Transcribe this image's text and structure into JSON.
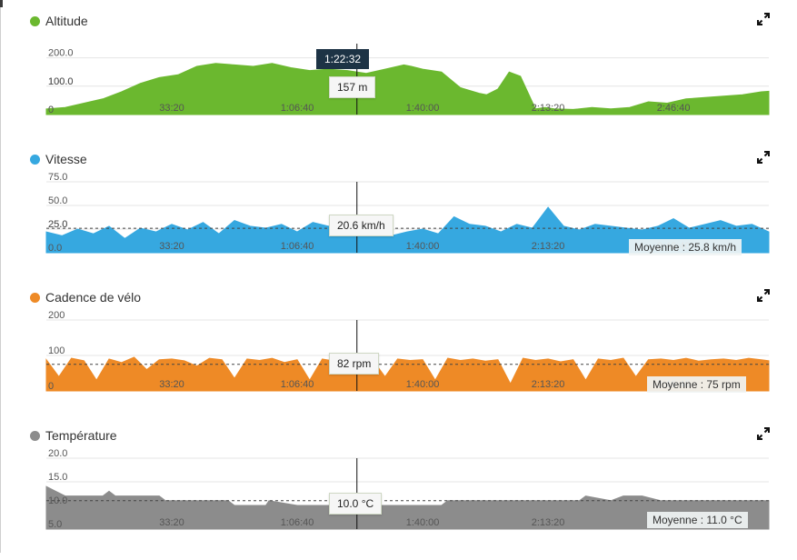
{
  "cursor": {
    "time_label": "1:22:32",
    "time_seconds": 4952
  },
  "x_axis": {
    "max_seconds": 11520,
    "ticks": [
      {
        "label": "33:20",
        "value": 2000
      },
      {
        "label": "1:06:40",
        "value": 4000
      },
      {
        "label": "1:40:00",
        "value": 6000
      },
      {
        "label": "2:13:20",
        "value": 8000
      },
      {
        "label": "2:46:40",
        "value": 10000
      }
    ]
  },
  "chart_data": [
    {
      "type": "area",
      "title": "Altitude",
      "color": "#6bb82f",
      "ylim": [
        0,
        250
      ],
      "yticks": [
        {
          "label": "200.0",
          "value": 200
        },
        {
          "label": "100.0",
          "value": 100
        },
        {
          "label": "0",
          "value": 0
        }
      ],
      "x": [
        0,
        300,
        600,
        900,
        1200,
        1500,
        1800,
        2100,
        2400,
        2700,
        3000,
        3300,
        3600,
        3900,
        4200,
        4500,
        4800,
        5100,
        5400,
        5700,
        5820,
        6000,
        6300,
        6600,
        6900,
        7020,
        7200,
        7380,
        7560,
        7800,
        7950,
        8100,
        8400,
        8700,
        9000,
        9300,
        9600,
        9900,
        10200,
        10500,
        10800,
        11100,
        11400,
        11520
      ],
      "values": [
        20,
        25,
        40,
        55,
        80,
        110,
        130,
        140,
        170,
        180,
        175,
        170,
        180,
        165,
        155,
        160,
        155,
        145,
        160,
        175,
        170,
        160,
        150,
        95,
        75,
        70,
        90,
        150,
        135,
        20,
        25,
        20,
        18,
        25,
        20,
        25,
        45,
        40,
        55,
        60,
        65,
        70,
        80,
        82
      ],
      "tooltip": "157 m"
    },
    {
      "type": "area",
      "title": "Vitesse",
      "color": "#36a8e0",
      "ylim": [
        0,
        75
      ],
      "yticks": [
        {
          "label": "75.0",
          "value": 75
        },
        {
          "label": "50.0",
          "value": 50
        },
        {
          "label": "25.0",
          "value": 25
        },
        {
          "label": "0.0",
          "value": 0
        }
      ],
      "average": 25.8,
      "average_label": "Moyenne : 25.8 km/h",
      "tooltip": "20.6 km/h",
      "x": [
        0,
        250,
        500,
        750,
        1000,
        1250,
        1500,
        1750,
        2000,
        2250,
        2500,
        2750,
        3000,
        3250,
        3500,
        3750,
        4000,
        4250,
        4500,
        4750,
        5000,
        5250,
        5500,
        5750,
        6000,
        6250,
        6500,
        6750,
        7000,
        7250,
        7500,
        7750,
        8000,
        8250,
        8500,
        8750,
        9000,
        9250,
        9500,
        9750,
        10000,
        10250,
        10500,
        10750,
        11000,
        11250,
        11520
      ],
      "values": [
        22,
        18,
        25,
        20,
        28,
        15,
        26,
        22,
        30,
        24,
        32,
        20,
        34,
        28,
        26,
        30,
        22,
        32,
        28,
        36,
        21,
        30,
        18,
        22,
        25,
        20,
        38,
        30,
        28,
        22,
        30,
        26,
        48,
        28,
        24,
        30,
        28,
        26,
        24,
        28,
        36,
        26,
        30,
        34,
        28,
        30,
        22
      ]
    },
    {
      "type": "area",
      "title": "Cadence de vélo",
      "color": "#ee8a26",
      "ylim": [
        0,
        200
      ],
      "yticks": [
        {
          "label": "200",
          "value": 200
        },
        {
          "label": "100",
          "value": 100
        },
        {
          "label": "0",
          "value": 0
        }
      ],
      "average": 75,
      "average_label": "Moyenne : 75 rpm",
      "tooltip": "82 rpm",
      "x": [
        0,
        200,
        400,
        600,
        800,
        1000,
        1200,
        1400,
        1600,
        1800,
        2000,
        2200,
        2400,
        2600,
        2800,
        3000,
        3200,
        3400,
        3600,
        3800,
        4000,
        4200,
        4400,
        4600,
        4800,
        5000,
        5200,
        5400,
        5600,
        5800,
        6000,
        6200,
        6400,
        6600,
        6800,
        7000,
        7200,
        7400,
        7600,
        7800,
        8000,
        8200,
        8400,
        8600,
        8800,
        9000,
        9200,
        9400,
        9600,
        9800,
        10000,
        10200,
        10400,
        10600,
        10800,
        11000,
        11200,
        11400,
        11520
      ],
      "values": [
        88,
        40,
        92,
        85,
        30,
        90,
        80,
        95,
        60,
        88,
        90,
        85,
        70,
        92,
        88,
        35,
        90,
        86,
        92,
        80,
        88,
        30,
        90,
        84,
        86,
        82,
        88,
        40,
        90,
        86,
        88,
        30,
        92,
        86,
        90,
        84,
        88,
        20,
        92,
        86,
        90,
        82,
        88,
        30,
        90,
        86,
        92,
        40,
        88,
        90,
        86,
        92,
        84,
        88,
        90,
        86,
        92,
        88,
        85
      ]
    },
    {
      "type": "area",
      "title": "Température",
      "color": "#8c8c8c",
      "ylim": [
        5,
        20
      ],
      "yticks": [
        {
          "label": "20.0",
          "value": 20
        },
        {
          "label": "15.0",
          "value": 15
        },
        {
          "label": "10.0",
          "value": 10
        },
        {
          "label": "5.0",
          "value": 5
        }
      ],
      "average": 11.0,
      "average_label": "Moyenne : 11.0 °C",
      "tooltip": "10.0 °C",
      "x": [
        0,
        150,
        300,
        900,
        1000,
        1100,
        1150,
        1300,
        1800,
        1900,
        2000,
        2500,
        2900,
        3000,
        3100,
        3500,
        3550,
        4000,
        4100,
        4500,
        5400,
        6300,
        6400,
        7500,
        8000,
        8500,
        8600,
        9000,
        9200,
        9300,
        9500,
        9800,
        10000,
        10500,
        11520
      ],
      "values": [
        14,
        13,
        12,
        12,
        13,
        12,
        12,
        12,
        12,
        11,
        11,
        11,
        11,
        10,
        10,
        10,
        11,
        10,
        10,
        10,
        10,
        10,
        11,
        11,
        11,
        11,
        12,
        11,
        12,
        12,
        12,
        11,
        11,
        11,
        11
      ]
    }
  ]
}
